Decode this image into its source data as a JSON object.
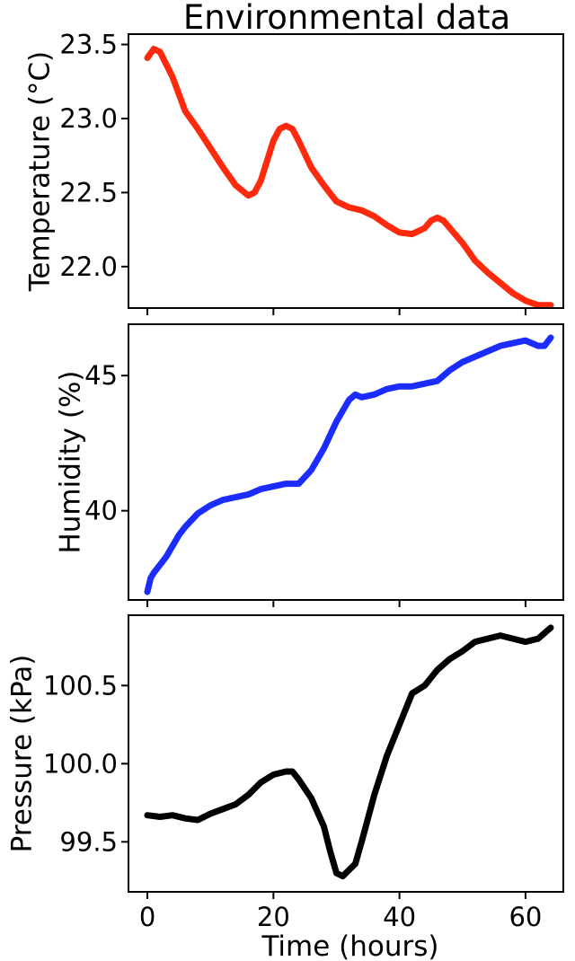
{
  "figure": {
    "title": "Environmental data",
    "xlabel": "Time (hours)"
  },
  "chart_data": [
    {
      "type": "line",
      "title": "Environmental data",
      "xlabel": "",
      "ylabel": "Temperature (°C)",
      "xlim": [
        -3,
        66
      ],
      "ylim": [
        21.72,
        23.57
      ],
      "xticks": [
        0,
        20,
        40,
        60
      ],
      "xtick_labels": [],
      "yticks": [
        22.0,
        22.5,
        23.0,
        23.5
      ],
      "ytick_labels": [
        "22.0",
        "22.5",
        "23.0",
        "23.5"
      ],
      "grid": false,
      "series": [
        {
          "color": "#ff2a0d",
          "x": [
            0,
            1,
            2,
            4,
            6,
            8,
            10,
            12,
            14,
            16,
            17,
            18,
            20,
            21,
            22,
            23,
            24,
            26,
            28,
            30,
            32,
            34,
            36,
            38,
            40,
            42,
            44,
            45,
            46,
            47,
            48,
            50,
            52,
            54,
            56,
            58,
            60,
            62,
            64
          ],
          "values": [
            23.41,
            23.47,
            23.45,
            23.28,
            23.05,
            22.93,
            22.8,
            22.67,
            22.55,
            22.48,
            22.5,
            22.58,
            22.85,
            22.93,
            22.95,
            22.93,
            22.85,
            22.67,
            22.55,
            22.44,
            22.4,
            22.38,
            22.34,
            22.28,
            22.23,
            22.22,
            22.26,
            22.31,
            22.33,
            22.31,
            22.26,
            22.16,
            22.04,
            21.96,
            21.89,
            21.82,
            21.77,
            21.74,
            21.74
          ]
        }
      ]
    },
    {
      "type": "line",
      "xlabel": "",
      "ylabel": "Humidity (%)",
      "xlim": [
        -3,
        66
      ],
      "ylim": [
        36.7,
        46.9
      ],
      "xticks": [
        0,
        20,
        40,
        60
      ],
      "xtick_labels": [],
      "yticks": [
        40,
        45
      ],
      "ytick_labels": [
        "40",
        "45"
      ],
      "grid": false,
      "series": [
        {
          "color": "#1b2cff",
          "x": [
            0,
            0.5,
            1,
            2,
            3,
            4,
            5,
            6,
            8,
            10,
            12,
            14,
            16,
            18,
            20,
            22,
            24,
            26,
            28,
            30,
            32,
            33,
            34,
            36,
            38,
            40,
            42,
            44,
            46,
            48,
            50,
            52,
            54,
            56,
            58,
            60,
            62,
            63,
            64
          ],
          "values": [
            37.0,
            37.5,
            37.7,
            38.0,
            38.3,
            38.7,
            39.1,
            39.4,
            39.9,
            40.2,
            40.4,
            40.5,
            40.6,
            40.8,
            40.9,
            41.0,
            41.0,
            41.5,
            42.3,
            43.3,
            44.1,
            44.3,
            44.2,
            44.3,
            44.5,
            44.6,
            44.6,
            44.7,
            44.8,
            45.2,
            45.5,
            45.7,
            45.9,
            46.1,
            46.2,
            46.3,
            46.1,
            46.1,
            46.4
          ]
        }
      ]
    },
    {
      "type": "line",
      "xlabel": "Time (hours)",
      "ylabel": "Pressure (kPa)",
      "xlim": [
        -3,
        66
      ],
      "ylim": [
        99.18,
        100.95
      ],
      "xticks": [
        0,
        20,
        40,
        60
      ],
      "xtick_labels": [
        "0",
        "20",
        "40",
        "60"
      ],
      "yticks": [
        99.5,
        100.0,
        100.5
      ],
      "ytick_labels": [
        "99.5",
        "100.0",
        "100.5"
      ],
      "grid": false,
      "series": [
        {
          "color": "#000000",
          "x": [
            0,
            2,
            4,
            6,
            8,
            10,
            12,
            14,
            16,
            18,
            20,
            22,
            23,
            24,
            26,
            28,
            29,
            30,
            31,
            32,
            33,
            34,
            36,
            38,
            40,
            42,
            44,
            46,
            48,
            50,
            52,
            54,
            56,
            58,
            60,
            62,
            64
          ],
          "values": [
            99.67,
            99.66,
            99.67,
            99.65,
            99.64,
            99.68,
            99.71,
            99.74,
            99.8,
            99.88,
            99.93,
            99.95,
            99.95,
            99.9,
            99.78,
            99.6,
            99.44,
            99.3,
            99.28,
            99.32,
            99.36,
            99.5,
            99.8,
            100.05,
            100.25,
            100.45,
            100.5,
            100.6,
            100.67,
            100.72,
            100.78,
            100.8,
            100.82,
            100.8,
            100.78,
            100.8,
            100.87
          ]
        }
      ]
    }
  ]
}
